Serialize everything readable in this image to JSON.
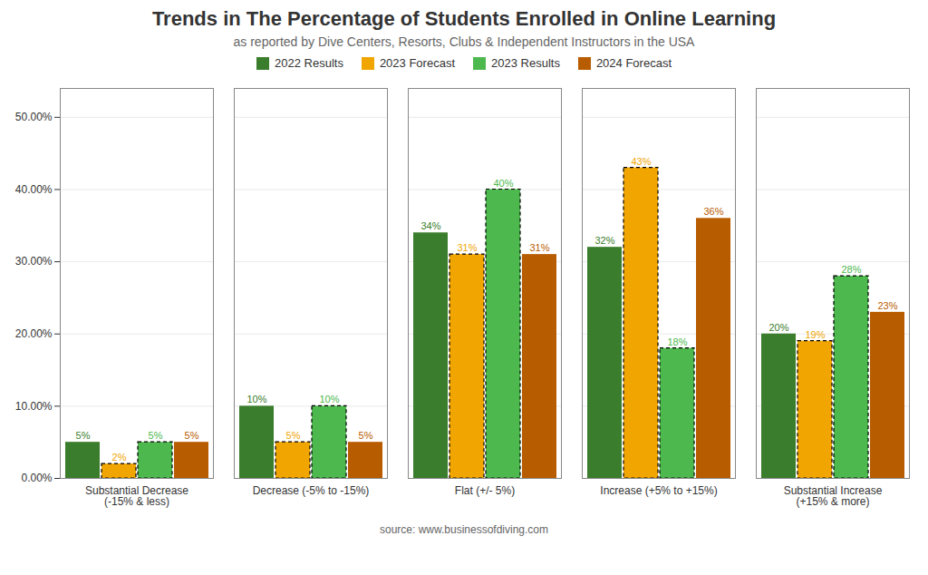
{
  "chart_data": {
    "type": "bar",
    "title": "Trends in The Percentage of Students Enrolled in Online Learning",
    "subtitle": "as reported by Dive Centers, Resorts, Clubs & Independent Instructors in the USA",
    "source": "source: www.businessofdiving.com",
    "categories": [
      "Substantial Decrease\n(-15% & less)",
      "Decrease (-5% to -15%)",
      "Flat (+/- 5%)",
      "Increase (+5% to +15%)",
      "Substantial Increase\n(+15% & more)"
    ],
    "series": [
      {
        "name": "2022 Results",
        "color": "#3a7d2c",
        "values": [
          0.05,
          0.1,
          0.34,
          0.32,
          0.2
        ],
        "value_labels": [
          "5%",
          "10%",
          "34%",
          "32%",
          "20%"
        ]
      },
      {
        "name": "2023 Forecast",
        "color": "#f0a500",
        "values": [
          0.02,
          0.05,
          0.31,
          0.43,
          0.19
        ],
        "value_labels": [
          "2%",
          "5%",
          "31%",
          "43%",
          "19%"
        ],
        "line_style": "dashed"
      },
      {
        "name": "2023 Results",
        "color": "#4db84e",
        "values": [
          0.05,
          0.1,
          0.4,
          0.18,
          0.28
        ],
        "value_labels": [
          "5%",
          "10%",
          "40%",
          "18%",
          "28%"
        ],
        "line_style": "dashed"
      },
      {
        "name": "2024 Forecast",
        "color": "#b85c00",
        "values": [
          0.05,
          0.05,
          0.31,
          0.36,
          0.23
        ],
        "value_labels": [
          "5%",
          "5%",
          "31%",
          "36%",
          "23%"
        ]
      }
    ],
    "ylim": [
      0,
      0.54
    ],
    "yticks": [
      {
        "value": 0.0,
        "label": "0.00%"
      },
      {
        "value": 0.1,
        "label": "10.00%"
      },
      {
        "value": 0.2,
        "label": "20.00%"
      },
      {
        "value": 0.3,
        "label": "30.00%"
      },
      {
        "value": 0.4,
        "label": "40.00%"
      },
      {
        "value": 0.5,
        "label": "50.00%"
      }
    ],
    "grid": true,
    "legend": "top",
    "data_labels": true
  }
}
